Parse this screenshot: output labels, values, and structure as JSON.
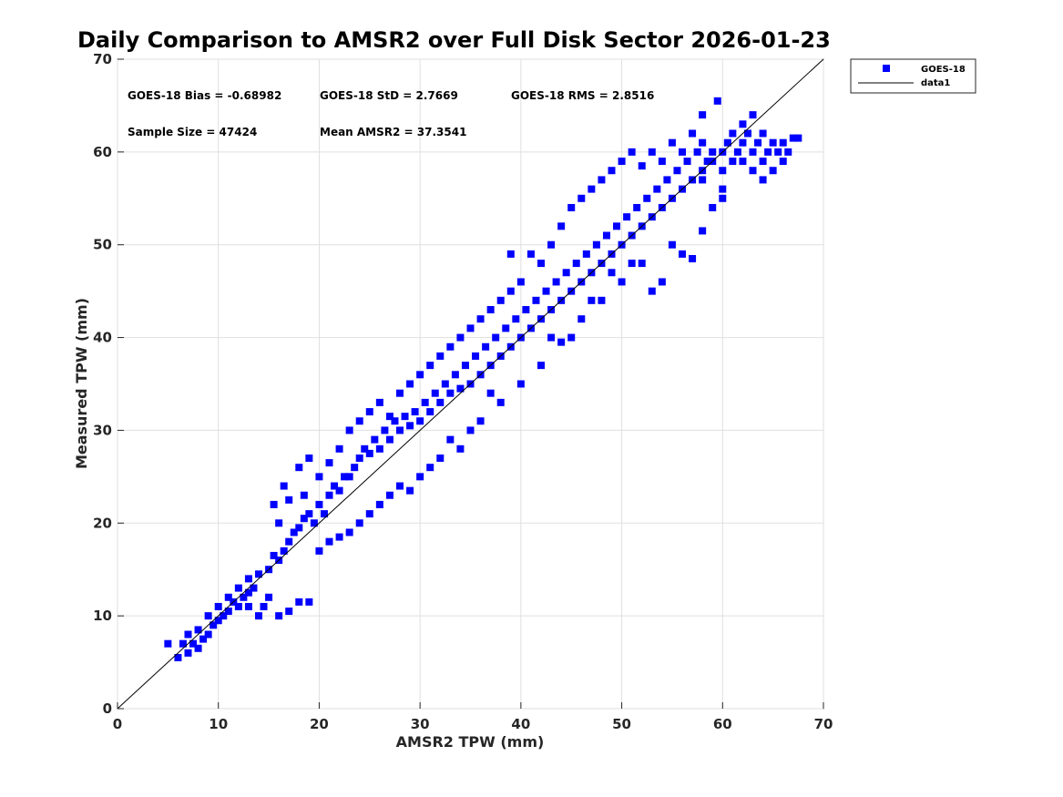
{
  "chart_data": {
    "type": "scatter",
    "title": "Daily Comparison to AMSR2 over Full Disk Sector 2026-01-23",
    "xlabel": "AMSR2 TPW (mm)",
    "ylabel": "Measured TPW (mm)",
    "xlim": [
      0,
      70
    ],
    "ylim": [
      0,
      70
    ],
    "xticks": [
      "0",
      "10",
      "20",
      "30",
      "40",
      "50",
      "60",
      "70"
    ],
    "yticks": [
      "0",
      "10",
      "20",
      "30",
      "40",
      "50",
      "60",
      "70"
    ],
    "grid": true,
    "legend_placement": "outside-top-right",
    "legend": [
      "GOES-18",
      "data1"
    ],
    "annotations": [
      "GOES-18 Bias = -0.68982",
      "GOES-18 StD = 2.7669",
      "GOES-18 RMS = 2.8516",
      "Sample Size = 47424",
      "Mean AMSR2 = 37.3541"
    ],
    "series": [
      {
        "name": "GOES-18",
        "marker": "square",
        "color": "#0000ff",
        "points": [
          [
            5,
            7
          ],
          [
            6,
            5.5
          ],
          [
            6.5,
            7
          ],
          [
            7,
            6
          ],
          [
            7,
            8
          ],
          [
            7.5,
            7
          ],
          [
            8,
            6.5
          ],
          [
            8,
            8.5
          ],
          [
            8.5,
            7.5
          ],
          [
            9,
            8
          ],
          [
            9,
            10
          ],
          [
            9.5,
            9
          ],
          [
            10,
            9.5
          ],
          [
            10,
            11
          ],
          [
            10.5,
            10
          ],
          [
            11,
            10.5
          ],
          [
            11,
            12
          ],
          [
            11.5,
            11.5
          ],
          [
            12,
            11
          ],
          [
            12,
            13
          ],
          [
            12.5,
            12
          ],
          [
            13,
            12.5
          ],
          [
            13,
            14
          ],
          [
            13.5,
            13
          ],
          [
            14,
            14.5
          ],
          [
            14,
            10
          ],
          [
            14.5,
            11
          ],
          [
            15,
            15
          ],
          [
            15,
            12
          ],
          [
            15.5,
            16.5
          ],
          [
            15.5,
            22
          ],
          [
            16,
            16
          ],
          [
            16,
            20
          ],
          [
            16.5,
            17
          ],
          [
            16.5,
            24
          ],
          [
            17,
            18
          ],
          [
            17,
            22.5
          ],
          [
            17.5,
            19
          ],
          [
            18,
            19.5
          ],
          [
            18,
            26
          ],
          [
            18.5,
            20.5
          ],
          [
            18.5,
            23
          ],
          [
            19,
            21
          ],
          [
            19,
            27
          ],
          [
            19.5,
            20
          ],
          [
            20,
            22
          ],
          [
            20,
            25
          ],
          [
            20.5,
            21
          ],
          [
            21,
            23
          ],
          [
            21,
            26.5
          ],
          [
            21.5,
            24
          ],
          [
            22,
            23.5
          ],
          [
            22,
            28
          ],
          [
            22.5,
            25
          ],
          [
            23,
            25
          ],
          [
            23,
            30
          ],
          [
            23.5,
            26
          ],
          [
            24,
            27
          ],
          [
            24,
            31
          ],
          [
            24.5,
            28
          ],
          [
            25,
            27.5
          ],
          [
            25,
            32
          ],
          [
            25.5,
            29
          ],
          [
            26,
            28
          ],
          [
            26,
            33
          ],
          [
            26.5,
            30
          ],
          [
            27,
            29
          ],
          [
            27,
            31.5
          ],
          [
            27.5,
            31
          ],
          [
            28,
            30
          ],
          [
            28,
            34
          ],
          [
            28.5,
            31.5
          ],
          [
            29,
            30.5
          ],
          [
            29,
            35
          ],
          [
            29.5,
            32
          ],
          [
            30,
            31
          ],
          [
            30,
            36
          ],
          [
            30.5,
            33
          ],
          [
            31,
            32
          ],
          [
            31,
            37
          ],
          [
            31.5,
            34
          ],
          [
            32,
            33
          ],
          [
            32,
            38
          ],
          [
            32.5,
            35
          ],
          [
            33,
            34
          ],
          [
            33,
            39
          ],
          [
            33.5,
            36
          ],
          [
            34,
            34.5
          ],
          [
            34,
            40
          ],
          [
            34.5,
            37
          ],
          [
            35,
            35
          ],
          [
            35,
            41
          ],
          [
            35.5,
            38
          ],
          [
            36,
            36
          ],
          [
            36,
            42
          ],
          [
            36.5,
            39
          ],
          [
            37,
            37
          ],
          [
            37,
            43
          ],
          [
            37.5,
            40
          ],
          [
            38,
            38
          ],
          [
            38,
            44
          ],
          [
            38.5,
            41
          ],
          [
            39,
            39
          ],
          [
            39,
            45
          ],
          [
            39.5,
            42
          ],
          [
            40,
            40
          ],
          [
            40,
            46
          ],
          [
            40.5,
            43
          ],
          [
            41,
            41
          ],
          [
            41,
            49
          ],
          [
            41.5,
            44
          ],
          [
            42,
            42
          ],
          [
            42,
            48
          ],
          [
            42.5,
            45
          ],
          [
            43,
            43
          ],
          [
            43,
            50
          ],
          [
            43.5,
            46
          ],
          [
            44,
            44
          ],
          [
            44,
            52
          ],
          [
            44.5,
            47
          ],
          [
            45,
            45
          ],
          [
            45,
            54
          ],
          [
            45.5,
            48
          ],
          [
            46,
            46
          ],
          [
            46,
            55
          ],
          [
            46.5,
            49
          ],
          [
            47,
            47
          ],
          [
            47,
            56
          ],
          [
            47.5,
            50
          ],
          [
            48,
            48
          ],
          [
            48,
            57
          ],
          [
            48.5,
            51
          ],
          [
            49,
            49
          ],
          [
            49,
            58
          ],
          [
            49.5,
            52
          ],
          [
            50,
            50
          ],
          [
            50,
            59
          ],
          [
            50.5,
            53
          ],
          [
            51,
            51
          ],
          [
            51,
            60
          ],
          [
            51.5,
            54
          ],
          [
            52,
            52
          ],
          [
            52,
            58.5
          ],
          [
            52.5,
            55
          ],
          [
            53,
            53
          ],
          [
            53,
            60
          ],
          [
            53.5,
            56
          ],
          [
            54,
            54
          ],
          [
            54,
            59
          ],
          [
            54.5,
            57
          ],
          [
            55,
            55
          ],
          [
            55,
            61
          ],
          [
            55.5,
            58
          ],
          [
            56,
            56
          ],
          [
            56,
            60
          ],
          [
            56.5,
            59
          ],
          [
            57,
            57
          ],
          [
            57,
            62
          ],
          [
            57.5,
            60
          ],
          [
            58,
            58
          ],
          [
            58,
            61
          ],
          [
            58.5,
            59
          ],
          [
            59,
            59
          ],
          [
            59,
            60
          ],
          [
            59.5,
            65.5
          ],
          [
            60,
            60
          ],
          [
            60,
            58
          ],
          [
            60.5,
            61
          ],
          [
            61,
            59
          ],
          [
            61,
            62
          ],
          [
            61.5,
            60
          ],
          [
            62,
            61
          ],
          [
            62,
            59
          ],
          [
            62.5,
            62
          ],
          [
            63,
            60
          ],
          [
            63,
            58
          ],
          [
            63.5,
            61
          ],
          [
            64,
            59
          ],
          [
            64,
            57
          ],
          [
            64.5,
            60
          ],
          [
            65,
            61
          ],
          [
            65,
            58
          ],
          [
            65.5,
            60
          ],
          [
            66,
            61
          ],
          [
            66,
            59
          ],
          [
            66.5,
            60
          ],
          [
            67,
            61.5
          ],
          [
            67.5,
            61.5
          ],
          [
            50,
            46
          ],
          [
            52,
            48
          ],
          [
            55,
            50
          ],
          [
            56,
            49
          ],
          [
            58,
            51.5
          ],
          [
            59,
            54
          ],
          [
            60,
            55
          ],
          [
            57,
            48.5
          ],
          [
            54,
            46
          ],
          [
            53,
            45
          ],
          [
            48,
            44
          ],
          [
            46,
            42
          ],
          [
            44,
            39.5
          ],
          [
            42,
            37
          ],
          [
            40,
            35
          ],
          [
            38,
            33
          ],
          [
            36,
            31
          ],
          [
            34,
            28
          ],
          [
            32,
            27
          ],
          [
            30,
            25
          ],
          [
            28,
            24
          ],
          [
            26,
            22
          ],
          [
            24,
            20
          ],
          [
            22,
            18.5
          ],
          [
            20,
            17
          ],
          [
            19,
            11.5
          ],
          [
            18,
            11.5
          ],
          [
            17,
            10.5
          ],
          [
            16,
            10
          ],
          [
            13,
            11
          ],
          [
            39,
            49
          ],
          [
            45,
            40
          ],
          [
            43,
            40
          ],
          [
            47,
            44
          ],
          [
            49,
            47
          ],
          [
            51,
            48
          ],
          [
            37,
            34
          ],
          [
            35,
            30
          ],
          [
            33,
            29
          ],
          [
            31,
            26
          ],
          [
            29,
            23.5
          ],
          [
            27,
            23
          ],
          [
            25,
            21
          ],
          [
            23,
            19
          ],
          [
            21,
            18
          ],
          [
            62,
            63
          ],
          [
            63,
            64
          ],
          [
            58,
            64
          ],
          [
            60,
            56
          ],
          [
            64,
            62
          ],
          [
            58,
            57
          ]
        ]
      },
      {
        "name": "data1",
        "type": "line",
        "color": "#000000",
        "x": [
          0,
          70
        ],
        "y": [
          0,
          70
        ]
      }
    ]
  }
}
